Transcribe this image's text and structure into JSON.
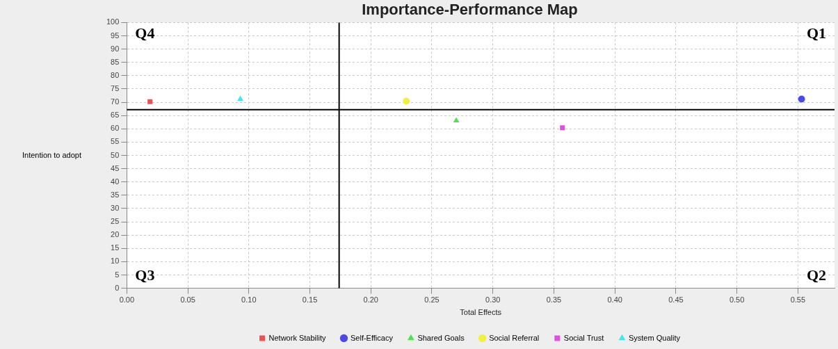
{
  "chart_data": {
    "type": "scatter",
    "title": "Importance-Performance Map",
    "xlabel": "Total Effects",
    "ylabel": "Intention to adopt",
    "series": [
      {
        "name": "Network Stability",
        "color": "#f05050",
        "marker": "square",
        "x": [
          0.019
        ],
        "values": [
          70.2
        ]
      },
      {
        "name": "Self-Efficacy",
        "color": "#4a4ae8",
        "marker": "circle",
        "x": [
          0.553
        ],
        "values": [
          71.2
        ]
      },
      {
        "name": "Shared Goals",
        "color": "#50e050",
        "marker": "triangle",
        "x": [
          0.27
        ],
        "values": [
          63.1
        ]
      },
      {
        "name": "Social Referral",
        "color": "#f0f040",
        "marker": "circle",
        "x": [
          0.229
        ],
        "values": [
          70.4
        ]
      },
      {
        "name": "Social Trust",
        "color": "#e050e0",
        "marker": "square",
        "x": [
          0.357
        ],
        "values": [
          60.4
        ]
      },
      {
        "name": "System Quality",
        "color": "#40e8f0",
        "marker": "triangle",
        "x": [
          0.093
        ],
        "values": [
          71.2
        ]
      }
    ],
    "xlim": [
      0,
      0.58
    ],
    "ylim": [
      0,
      100
    ],
    "xticks": [
      {
        "value": 0,
        "label": "0.00"
      },
      0.05,
      {
        "value": 0.1,
        "label": "0.10"
      },
      0.15,
      {
        "value": 0.2,
        "label": "0.20"
      },
      0.25,
      {
        "value": 0.3,
        "label": "0.30"
      },
      0.35,
      {
        "value": 0.4,
        "label": "0.40"
      },
      0.45,
      {
        "value": 0.5,
        "label": "0.50"
      },
      0.55
    ],
    "yticks": [
      0,
      5,
      10,
      15,
      20,
      25,
      30,
      35,
      40,
      45,
      50,
      55,
      60,
      65,
      70,
      75,
      80,
      85,
      90,
      95,
      100
    ],
    "ref_lines": [
      {
        "axis": "x",
        "value": 0.174,
        "color": "#000000"
      },
      {
        "axis": "y",
        "value": 67.2,
        "color": "#000000"
      }
    ],
    "annotations": [
      "Q4",
      "Q1",
      "Q3",
      "Q2"
    ],
    "grid": true,
    "legend": "bottom"
  }
}
